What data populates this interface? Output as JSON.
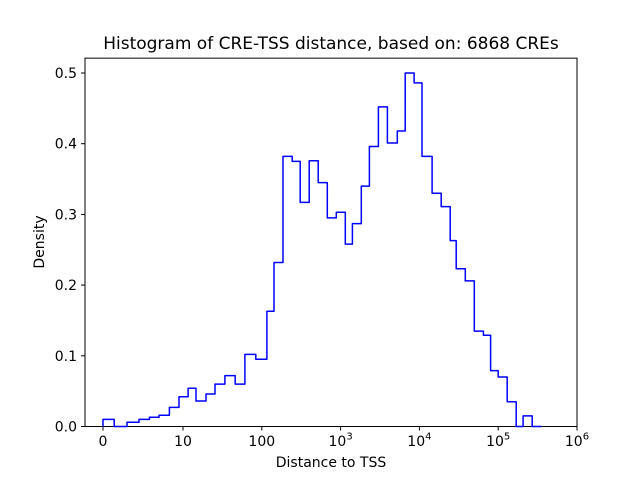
{
  "chart_data": {
    "type": "histogram-step",
    "title": "Histogram of CRE-TSS distance, based on: 6868 CREs",
    "xlabel": "Distance to TSS",
    "ylabel": "Density",
    "n_cres": 6868,
    "x_scale": "symlog",
    "x_linthresh": 10,
    "line_color": "#0000ff",
    "axis_color": "#000000",
    "background_color": "#ffffff",
    "grid": false,
    "legend": false,
    "xlim": [
      -2.25,
      1000000
    ],
    "ylim": [
      0.0,
      0.521
    ],
    "x_ticks": [
      {
        "label": "0",
        "sup": "",
        "value": 0
      },
      {
        "label": "10",
        "sup": "",
        "value": 10
      },
      {
        "label": "100",
        "sup": "",
        "value": 100
      },
      {
        "label": "10",
        "sup": "3",
        "value": 1000
      },
      {
        "label": "10",
        "sup": "4",
        "value": 10000
      },
      {
        "label": "10",
        "sup": "5",
        "value": 100000
      },
      {
        "label": "10",
        "sup": "6",
        "value": 1000000
      }
    ],
    "y_ticks": [
      0.0,
      0.1,
      0.2,
      0.3,
      0.4,
      0.5
    ],
    "bin_edges": [
      0,
      1.4,
      3.0,
      4.5,
      5.8,
      7.0,
      8.3,
      9.5,
      11.6,
      14.6,
      19.6,
      25.5,
      34,
      46,
      61,
      84,
      116,
      143,
      186,
      243,
      307,
      400,
      520,
      678,
      881,
      1147,
      1410,
      1830,
      2320,
      3020,
      3920,
      5240,
      6600,
      8570,
      10800,
      14500,
      18900,
      24600,
      29300,
      38200,
      49800,
      64800,
      80000,
      100000,
      130000,
      169000,
      207000,
      270000,
      350000
    ],
    "densities": [
      0.01,
      0.0,
      0.006,
      0.01,
      0.013,
      0.016,
      0.027,
      0.042,
      0.054,
      0.036,
      0.046,
      0.06,
      0.072,
      0.06,
      0.102,
      0.095,
      0.163,
      0.232,
      0.382,
      0.375,
      0.317,
      0.376,
      0.345,
      0.295,
      0.303,
      0.258,
      0.287,
      0.34,
      0.396,
      0.452,
      0.401,
      0.418,
      0.5,
      0.486,
      0.382,
      0.33,
      0.311,
      0.263,
      0.223,
      0.206,
      0.135,
      0.129,
      0.079,
      0.07,
      0.035,
      0.0,
      0.015,
      0.0
    ]
  }
}
